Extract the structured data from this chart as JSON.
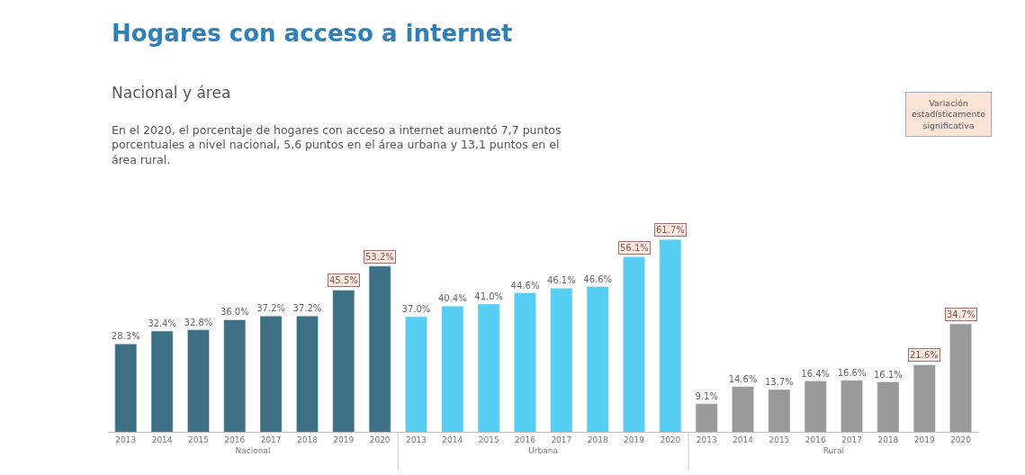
{
  "chart_data": [
    {
      "type": "bar",
      "title": "Hogares con acceso a internet",
      "subtitle": "Nacional y área",
      "xlabel": "Nacional",
      "categories": [
        "2013",
        "2014",
        "2015",
        "2016",
        "2017",
        "2018",
        "2019",
        "2020"
      ],
      "values": [
        28.3,
        32.4,
        32.8,
        36.0,
        37.2,
        37.2,
        45.5,
        53.2
      ],
      "color": "#3f7186",
      "tick_labels": "x",
      "value_labels": [
        "28.3%",
        "32.4%",
        "32.8%",
        "36.0%",
        "37.2%",
        "37.2%",
        null,
        null
      ],
      "annotations": [
        "En el 2020, el porcentaje de hogares con acceso a internet aumentó 7,7 puntos porcentuales a nivel nacional, 5,6 puntos en el área urbana y 13,1 puntos en el área rural.",
        "Variación estadísticamente significativa",
        {
          "text": "45.5%",
          "x": "2019",
          "y": 45.5
        },
        {
          "text": "53.2%",
          "x": "2020",
          "y": 53.2
        }
      ]
    },
    {
      "type": "bar",
      "xlabel": "Urbana",
      "categories": [
        "2013",
        "2014",
        "2015",
        "2016",
        "2017",
        "2018",
        "2019",
        "2020"
      ],
      "values": [
        37.0,
        40.4,
        41.0,
        44.6,
        46.1,
        46.6,
        56.1,
        61.7
      ],
      "color": "#56cdf2",
      "tick_labels": "x",
      "value_labels": [
        "37.0%",
        "40.4%",
        "41.0%",
        "44.6%",
        "46.1%",
        "46.6%",
        null,
        null
      ],
      "annotations": [
        {
          "text": "56.1%",
          "x": "2019",
          "y": 56.1
        },
        {
          "text": "61.7%",
          "x": "2020",
          "y": 61.7
        }
      ]
    },
    {
      "type": "bar",
      "xlabel": "Rural",
      "categories": [
        "2013",
        "2014",
        "2015",
        "2016",
        "2017",
        "2018",
        "2019",
        "2020"
      ],
      "values": [
        9.1,
        14.6,
        13.7,
        16.4,
        16.6,
        16.1,
        21.6,
        34.7
      ],
      "color": "#999999",
      "tick_labels": "x",
      "value_labels": [
        "9.1%",
        "14.6%",
        "13.7%",
        "16.4%",
        "16.6%",
        "16.1%",
        null,
        null
      ],
      "annotations": [
        {
          "text": "21.6%",
          "x": "2019",
          "y": 21.6
        },
        {
          "text": "34.7%",
          "x": "2020",
          "y": 34.7
        }
      ]
    }
  ]
}
